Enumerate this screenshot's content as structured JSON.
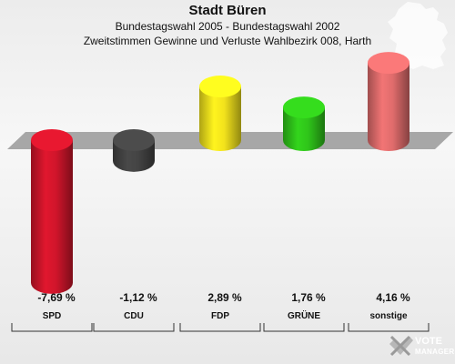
{
  "header": {
    "title": "Stadt Büren",
    "subtitle1": "Bundestagswahl 2005 - Bundestagswahl 2002",
    "subtitle2": "Zweitstimmen Gewinne und Verluste Wahlbezirk 008, Harth"
  },
  "logo": {
    "text": "VOTE",
    "sub": "MANAGER"
  },
  "chart_data": {
    "type": "bar",
    "title": "Stadt Büren",
    "categories": [
      "SPD",
      "CDU",
      "FDP",
      "GRÜNE",
      "sonstige"
    ],
    "values": [
      -7.69,
      -1.12,
      2.89,
      1.76,
      4.16
    ],
    "value_labels": [
      "-7,69 %",
      "-1,12 %",
      "2,89 %",
      "1,76 %",
      "4,16 %"
    ],
    "colors": [
      "#d0152b",
      "#444444",
      "#f2e21c",
      "#2fc51a",
      "#e06c6c"
    ],
    "xlabel": "",
    "ylabel": "",
    "grid": false,
    "legend": "none"
  }
}
